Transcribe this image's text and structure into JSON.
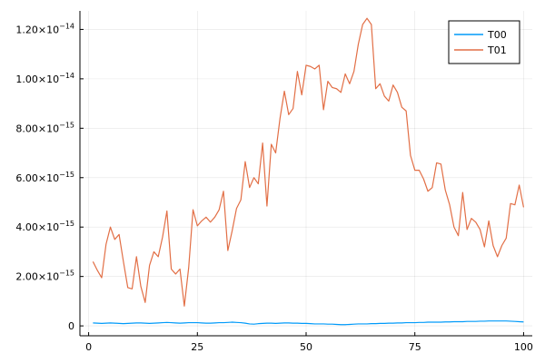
{
  "chart_data": {
    "type": "line",
    "xlim": [
      0,
      100
    ],
    "ylim": [
      0,
      1.25e-14
    ],
    "grid": true,
    "legend_position": "top-right",
    "x_ticks": [
      {
        "value": 0,
        "label": "0"
      },
      {
        "value": 25,
        "label": "25"
      },
      {
        "value": 50,
        "label": "50"
      },
      {
        "value": 75,
        "label": "75"
      },
      {
        "value": 100,
        "label": "100"
      }
    ],
    "y_ticks": [
      {
        "value": 0,
        "label": "0",
        "mantissa": "",
        "exponent": ""
      },
      {
        "value": 2e-15,
        "label": "",
        "mantissa": "2.00×10",
        "exponent": "−15"
      },
      {
        "value": 4e-15,
        "label": "",
        "mantissa": "4.00×10",
        "exponent": "−15"
      },
      {
        "value": 6e-15,
        "label": "",
        "mantissa": "6.00×10",
        "exponent": "−15"
      },
      {
        "value": 8e-15,
        "label": "",
        "mantissa": "8.00×10",
        "exponent": "−15"
      },
      {
        "value": 1e-14,
        "label": "",
        "mantissa": "1.00×10",
        "exponent": "−14"
      },
      {
        "value": 1.2e-14,
        "label": "",
        "mantissa": "1.20×10",
        "exponent": "−14"
      }
    ],
    "series": [
      {
        "name": "T00",
        "color": "#009af9",
        "x": [
          1,
          2,
          3,
          4,
          5,
          6,
          7,
          8,
          9,
          10,
          11,
          12,
          13,
          14,
          15,
          16,
          17,
          18,
          19,
          20,
          21,
          22,
          23,
          24,
          25,
          26,
          27,
          28,
          29,
          30,
          31,
          32,
          33,
          34,
          35,
          36,
          37,
          38,
          39,
          40,
          41,
          42,
          43,
          44,
          45,
          46,
          47,
          48,
          49,
          50,
          51,
          52,
          53,
          54,
          55,
          56,
          57,
          58,
          59,
          60,
          61,
          62,
          63,
          64,
          65,
          66,
          67,
          68,
          69,
          70,
          71,
          72,
          73,
          74,
          75,
          76,
          77,
          78,
          79,
          80,
          81,
          82,
          83,
          84,
          85,
          86,
          87,
          88,
          89,
          90,
          91,
          92,
          93,
          94,
          95,
          96,
          97,
          98,
          99,
          100
        ],
        "y": [
          1.2e-16,
          1.1e-16,
          1e-16,
          1.1e-16,
          1.2e-16,
          1.1e-16,
          1e-16,
          9e-17,
          1e-16,
          1.1e-16,
          1.2e-16,
          1.2e-16,
          1.1e-16,
          1e-16,
          1.1e-16,
          1.2e-16,
          1.3e-16,
          1.4e-16,
          1.3e-16,
          1.2e-16,
          1.1e-16,
          1.2e-16,
          1.3e-16,
          1.3e-16,
          1.3e-16,
          1.2e-16,
          1.1e-16,
          1.1e-16,
          1.2e-16,
          1.3e-16,
          1.3e-16,
          1.4e-16,
          1.5e-16,
          1.4e-16,
          1.3e-16,
          1.1e-16,
          8e-17,
          7e-17,
          9e-17,
          1e-16,
          1.1e-16,
          1.1e-16,
          1e-16,
          1.1e-16,
          1.2e-16,
          1.2e-16,
          1.1e-16,
          1.1e-16,
          1e-16,
          1e-16,
          9e-17,
          8e-17,
          8e-17,
          8e-17,
          7e-17,
          7e-17,
          6e-17,
          5e-17,
          5e-17,
          6e-17,
          7e-17,
          8e-17,
          8e-17,
          8e-17,
          9e-17,
          9e-17,
          1e-16,
          1e-16,
          1.1e-16,
          1.1e-16,
          1.2e-16,
          1.2e-16,
          1.3e-16,
          1.3e-16,
          1.3e-16,
          1.4e-16,
          1.4e-16,
          1.5e-16,
          1.5e-16,
          1.5e-16,
          1.5e-16,
          1.6e-16,
          1.6e-16,
          1.7e-16,
          1.7e-16,
          1.7e-16,
          1.8e-16,
          1.8e-16,
          1.8e-16,
          1.9e-16,
          1.9e-16,
          2e-16,
          2e-16,
          2e-16,
          2e-16,
          2e-16,
          1.9e-16,
          1.8e-16,
          1.7e-16,
          1.6e-16
        ]
      },
      {
        "name": "T01",
        "color": "#e26f46",
        "x": [
          1,
          2,
          3,
          4,
          5,
          6,
          7,
          8,
          9,
          10,
          11,
          12,
          13,
          14,
          15,
          16,
          17,
          18,
          19,
          20,
          21,
          22,
          23,
          24,
          25,
          26,
          27,
          28,
          29,
          30,
          31,
          32,
          33,
          34,
          35,
          36,
          37,
          38,
          39,
          40,
          41,
          42,
          43,
          44,
          45,
          46,
          47,
          48,
          49,
          50,
          51,
          52,
          53,
          54,
          55,
          56,
          57,
          58,
          59,
          60,
          61,
          62,
          63,
          64,
          65,
          66,
          67,
          68,
          69,
          70,
          71,
          72,
          73,
          74,
          75,
          76,
          77,
          78,
          79,
          80,
          81,
          82,
          83,
          84,
          85,
          86,
          87,
          88,
          89,
          90,
          91,
          92,
          93,
          94,
          95,
          96,
          97,
          98,
          99,
          100
        ],
        "y": [
          2.6e-15,
          2.25e-15,
          1.95e-15,
          3.3e-15,
          4e-15,
          3.5e-15,
          3.7e-15,
          2.6e-15,
          1.55e-15,
          1.5e-15,
          2.8e-15,
          1.6e-15,
          9.5e-16,
          2.45e-15,
          3e-15,
          2.8e-15,
          3.6e-15,
          4.65e-15,
          2.3e-15,
          2.1e-15,
          2.3e-15,
          8e-16,
          2.35e-15,
          4.7e-15,
          4.05e-15,
          4.25e-15,
          4.4e-15,
          4.2e-15,
          4.4e-15,
          4.7e-15,
          5.45e-15,
          3.05e-15,
          3.85e-15,
          4.75e-15,
          5.1e-15,
          6.65e-15,
          5.6e-15,
          6e-15,
          5.75e-15,
          7.4e-15,
          4.85e-15,
          7.35e-15,
          7e-15,
          8.4e-15,
          9.5e-15,
          8.55e-15,
          8.8e-15,
          1.03e-14,
          9.35e-15,
          1.055e-14,
          1.05e-14,
          1.04e-14,
          1.055e-14,
          8.75e-15,
          9.9e-15,
          9.65e-15,
          9.6e-15,
          9.45e-15,
          1.02e-14,
          9.8e-15,
          1.03e-14,
          1.14e-14,
          1.22e-14,
          1.245e-14,
          1.22e-14,
          9.6e-15,
          9.8e-15,
          9.3e-15,
          9.1e-15,
          9.75e-15,
          9.45e-15,
          8.85e-15,
          8.7e-15,
          6.9e-15,
          6.3e-15,
          6.3e-15,
          5.95e-15,
          5.45e-15,
          5.6e-15,
          6.6e-15,
          6.55e-15,
          5.5e-15,
          4.9e-15,
          4e-15,
          3.65e-15,
          5.4e-15,
          3.9e-15,
          4.35e-15,
          4.2e-15,
          3.9e-15,
          3.2e-15,
          4.25e-15,
          3.25e-15,
          2.8e-15,
          3.25e-15,
          3.55e-15,
          4.95e-15,
          4.9e-15,
          5.7e-15,
          4.8e-15
        ]
      }
    ]
  }
}
